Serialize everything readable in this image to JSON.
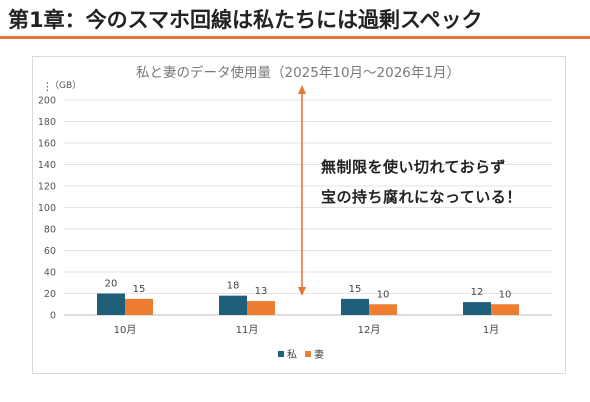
{
  "slide": {
    "title": "第1章：今のスマホ回線は私たちには過剰スペック"
  },
  "callout": {
    "line1": "無制限を使い切れておらず",
    "line2": "宝の持ち腐れになっている！"
  },
  "colors": {
    "accent": "#e8763a",
    "series_me": "#1f5f7a",
    "series_wife": "#ed7d31"
  },
  "chart_data": {
    "type": "bar",
    "title": "私と妻のデータ使用量（2025年10月〜2026年1月）",
    "unit_label": "（GB）",
    "categories": [
      "10月",
      "11月",
      "12月",
      "1月"
    ],
    "series": [
      {
        "name": "私",
        "values": [
          20,
          18,
          15,
          12
        ],
        "color": "#1f5f7a"
      },
      {
        "name": "妻",
        "values": [
          15,
          13,
          10,
          10
        ],
        "color": "#ed7d31"
      }
    ],
    "ylim": [
      0,
      200
    ],
    "yticks": [
      0,
      20,
      40,
      60,
      80,
      100,
      120,
      140,
      160,
      180,
      200
    ],
    "grid": true,
    "legend": "bottom",
    "data_labels": true
  }
}
